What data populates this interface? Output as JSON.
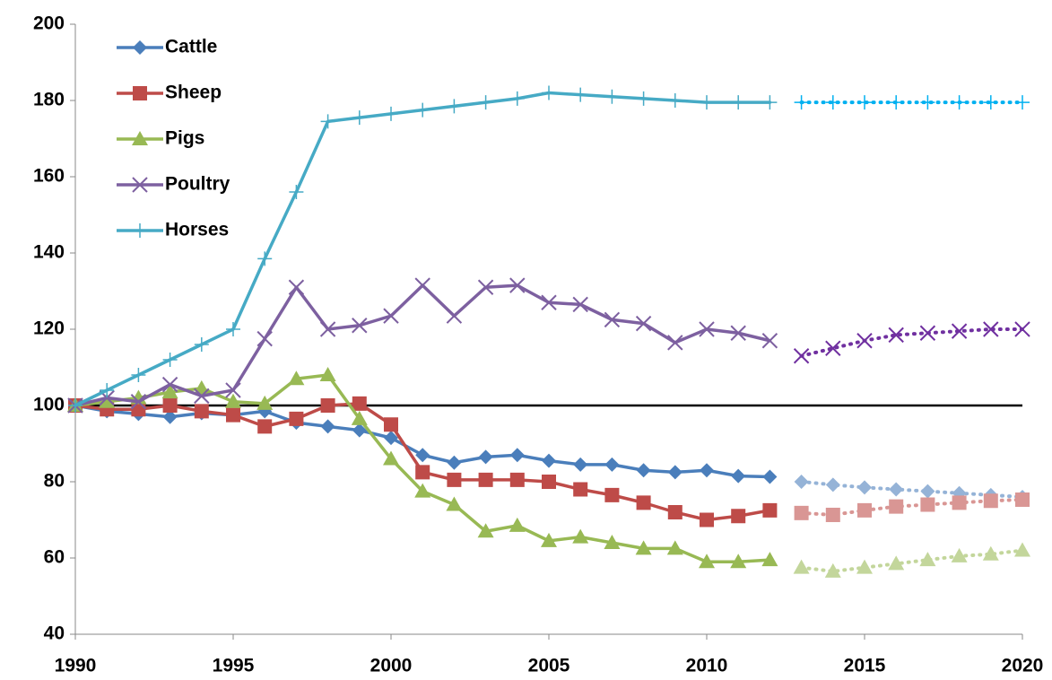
{
  "chart_data": {
    "type": "line",
    "x": [
      1990,
      1991,
      1992,
      1993,
      1994,
      1995,
      1996,
      1997,
      1998,
      1999,
      2000,
      2001,
      2002,
      2003,
      2004,
      2005,
      2006,
      2007,
      2008,
      2009,
      2010,
      2011,
      2012,
      2013,
      2014,
      2015,
      2016,
      2017,
      2018,
      2019,
      2020
    ],
    "xlim": [
      1990,
      2020
    ],
    "xticks": [
      1990,
      1995,
      2000,
      2005,
      2010,
      2015,
      2020
    ],
    "ylim": [
      40,
      200
    ],
    "yticks": [
      40,
      60,
      80,
      100,
      120,
      140,
      160,
      180,
      200
    ],
    "reference_line": 100,
    "legend": "upper-left",
    "series": [
      {
        "name": "Cattle",
        "color": "#4a7ebb",
        "projection_color": "#95b3d7",
        "marker": "diamond",
        "values": [
          100,
          98.5,
          97.8,
          97,
          98,
          97.5,
          98.5,
          95.5,
          94.5,
          93.5,
          91.5,
          87,
          85,
          86.5,
          87,
          85.5,
          84.5,
          84.5,
          83,
          82.5,
          83,
          81.5,
          81.3,
          null,
          null,
          null,
          null,
          null,
          null,
          null,
          null
        ],
        "projected_values": [
          null,
          null,
          null,
          null,
          null,
          null,
          null,
          null,
          null,
          null,
          null,
          null,
          null,
          null,
          null,
          null,
          null,
          null,
          null,
          null,
          null,
          null,
          null,
          80,
          79.2,
          78.5,
          78,
          77.5,
          77,
          76.5,
          76
        ]
      },
      {
        "name": "Sheep",
        "color": "#be4b48",
        "projection_color": "#d99694",
        "marker": "square",
        "values": [
          100,
          99,
          99,
          100,
          98.5,
          97.5,
          94.5,
          96.5,
          100,
          100.5,
          95,
          82.5,
          80.5,
          80.5,
          80.5,
          80,
          78,
          76.5,
          74.5,
          72,
          70,
          71,
          72.5,
          null,
          null,
          null,
          null,
          null,
          null,
          null,
          null
        ],
        "projected_values": [
          null,
          null,
          null,
          null,
          null,
          null,
          null,
          null,
          null,
          null,
          null,
          null,
          null,
          null,
          null,
          null,
          null,
          null,
          null,
          null,
          null,
          null,
          null,
          71.8,
          71.3,
          72.5,
          73.5,
          74,
          74.5,
          75,
          75.3
        ]
      },
      {
        "name": "Pigs",
        "color": "#98b954",
        "projection_color": "#c3d69b",
        "marker": "triangle",
        "values": [
          100,
          101,
          102,
          103.5,
          104.5,
          101,
          100.5,
          107,
          108,
          96.5,
          86,
          77.5,
          74,
          67,
          68.5,
          64.5,
          65.5,
          64,
          62.5,
          62.5,
          59,
          59,
          59.5,
          null,
          null,
          null,
          null,
          null,
          null,
          null,
          null
        ],
        "projected_values": [
          null,
          null,
          null,
          null,
          null,
          null,
          null,
          null,
          null,
          null,
          null,
          null,
          null,
          null,
          null,
          null,
          null,
          null,
          null,
          null,
          null,
          null,
          null,
          57.5,
          56.5,
          57.5,
          58.5,
          59.5,
          60.5,
          61,
          62
        ]
      },
      {
        "name": "Poultry",
        "color": "#7d60a0",
        "projection_color": "#7030a0",
        "marker": "x",
        "values": [
          100,
          102,
          101,
          105.5,
          102.5,
          104,
          117.5,
          131,
          120,
          121,
          123.5,
          131.5,
          123.5,
          131,
          131.5,
          127,
          126.5,
          122.5,
          121.5,
          116.5,
          120,
          119,
          117,
          null,
          null,
          null,
          null,
          null,
          null,
          null,
          null
        ],
        "projected_values": [
          null,
          null,
          null,
          null,
          null,
          null,
          null,
          null,
          null,
          null,
          null,
          null,
          null,
          null,
          null,
          null,
          null,
          null,
          null,
          null,
          null,
          null,
          null,
          113,
          115,
          117,
          118.5,
          119,
          119.5,
          120,
          120
        ]
      },
      {
        "name": "Horses",
        "color": "#46aac5",
        "projection_color": "#00b0f0",
        "marker": "plus",
        "values": [
          100,
          104,
          108,
          112,
          116,
          120,
          138.5,
          156,
          174.5,
          175.5,
          176.5,
          177.5,
          178.5,
          179.5,
          180.5,
          182,
          181.5,
          181,
          180.5,
          180,
          179.5,
          179.5,
          179.5,
          null,
          null,
          null,
          null,
          null,
          null,
          null,
          null
        ],
        "projected_values": [
          null,
          null,
          null,
          null,
          null,
          null,
          null,
          null,
          null,
          null,
          null,
          null,
          null,
          null,
          null,
          null,
          null,
          null,
          null,
          null,
          null,
          null,
          null,
          179.5,
          179.5,
          179.5,
          179.5,
          179.5,
          179.5,
          179.5,
          179.5
        ]
      }
    ]
  }
}
